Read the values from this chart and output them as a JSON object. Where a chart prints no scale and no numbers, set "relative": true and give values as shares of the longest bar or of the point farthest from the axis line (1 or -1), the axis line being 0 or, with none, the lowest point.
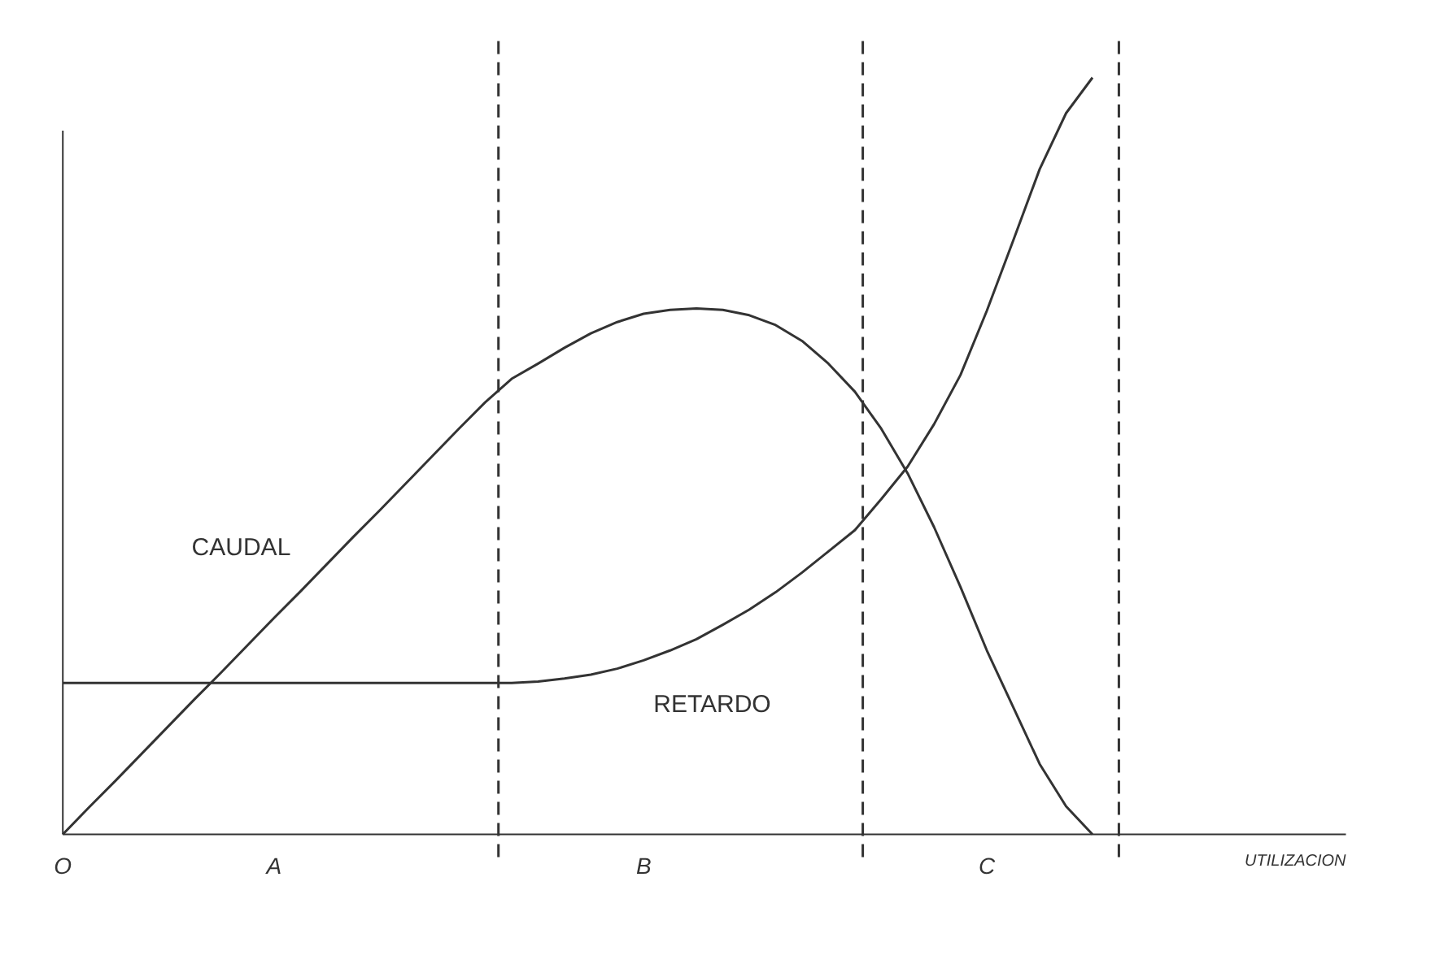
{
  "chart_data": {
    "type": "line",
    "relative": true,
    "xlabel": "UTILIZACION",
    "categories": [
      "O",
      null,
      null,
      null,
      null,
      null,
      null,
      null,
      "A",
      null,
      null,
      null,
      null,
      null,
      null,
      null,
      null,
      null,
      null,
      null,
      null,
      null,
      "B",
      null,
      null,
      null,
      null,
      null,
      null,
      null,
      null,
      null,
      null,
      null,
      null,
      "C",
      null,
      null,
      null,
      null,
      null,
      null,
      null,
      null,
      null,
      null,
      null,
      null,
      null
    ],
    "series": [
      {
        "name": "CAUDAL",
        "color": "#333333",
        "values": [
          0,
          0.036,
          0.071,
          0.107,
          0.143,
          0.179,
          0.214,
          0.25,
          0.286,
          0.321,
          0.357,
          0.393,
          0.428,
          0.464,
          0.5,
          0.536,
          0.571,
          0.602,
          0.622,
          0.643,
          0.662,
          0.677,
          0.688,
          0.693,
          0.695,
          0.693,
          0.686,
          0.673,
          0.652,
          0.622,
          0.585,
          0.536,
          0.477,
          0.406,
          0.327,
          0.243,
          0.168,
          0.093,
          0.037,
          0,
          null,
          null,
          null,
          null,
          null,
          null,
          null,
          null,
          null
        ]
      },
      {
        "name": "RETARDO",
        "color": "#333333",
        "values": [
          0.2,
          0.2,
          0.2,
          0.2,
          0.2,
          0.2,
          0.2,
          0.2,
          0.2,
          0.2,
          0.2,
          0.2,
          0.2,
          0.2,
          0.2,
          0.2,
          0.2,
          0.2,
          0.202,
          0.206,
          0.211,
          0.219,
          0.23,
          0.243,
          0.258,
          0.277,
          0.297,
          0.32,
          0.346,
          0.374,
          0.402,
          0.443,
          0.486,
          0.542,
          0.607,
          0.692,
          0.785,
          0.879,
          0.953,
          1.0,
          null,
          null,
          null,
          null,
          null,
          null,
          null,
          null,
          null
        ]
      }
    ],
    "line_style": "solid"
  }
}
